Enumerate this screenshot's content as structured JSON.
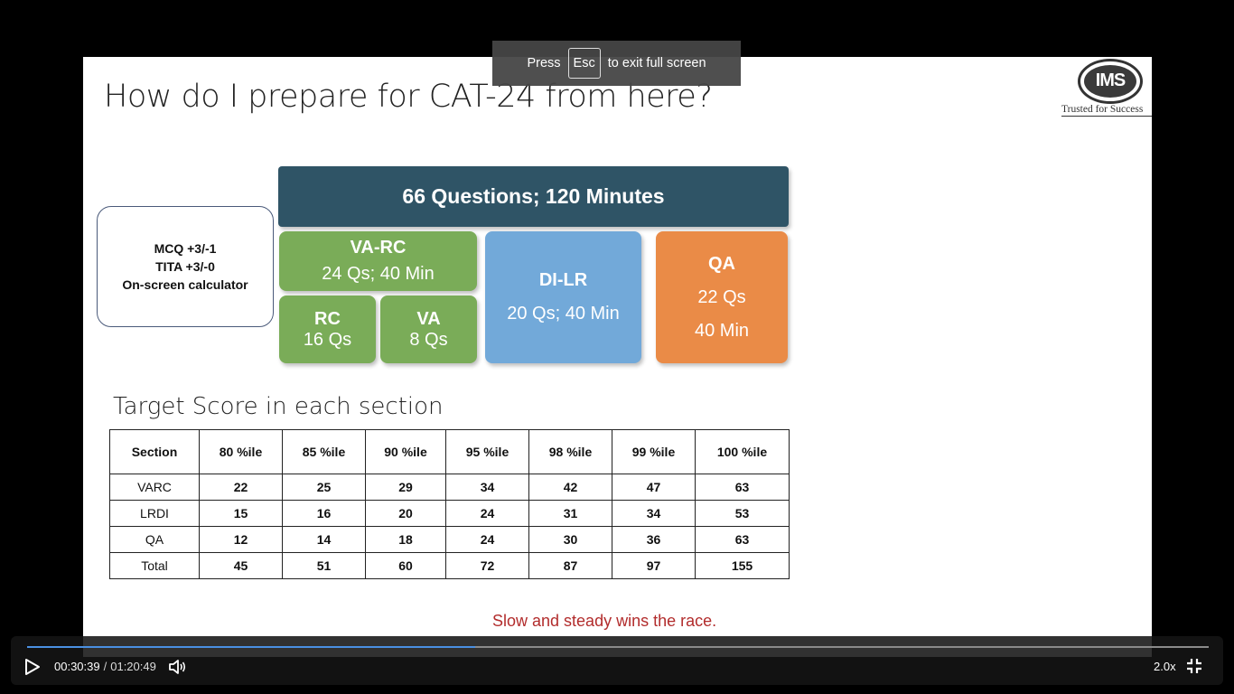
{
  "slide": {
    "title": "How do I prepare for CAT-24 from here?",
    "logo": {
      "text": "IMS",
      "tagline": "Trusted for Success"
    },
    "rules": [
      "MCQ +3/-1",
      "TITA +3/-0",
      "On-screen calculator"
    ],
    "header": "66 Questions; 120 Minutes",
    "varc": {
      "title": "VA-RC",
      "detail": "24 Qs; 40 Min"
    },
    "rc": {
      "title": "RC",
      "detail": "16 Qs"
    },
    "va": {
      "title": "VA",
      "detail": "8 Qs"
    },
    "dilr": {
      "title": "DI-LR",
      "detail": "20 Qs; 40 Min"
    },
    "qa": {
      "title": "QA",
      "qs": "22 Qs",
      "min": "40 Min"
    },
    "target_title": "Target Score in each section",
    "table": {
      "headers": [
        "Section",
        "80 %ile",
        "85 %ile",
        "90 %ile",
        "95 %ile",
        "98 %ile",
        "99 %ile",
        "100 %ile"
      ],
      "rows": [
        [
          "VARC",
          "22",
          "25",
          "29",
          "34",
          "42",
          "47",
          "63"
        ],
        [
          "LRDI",
          "15",
          "16",
          "20",
          "24",
          "31",
          "34",
          "53"
        ],
        [
          "QA",
          "12",
          "14",
          "18",
          "24",
          "30",
          "36",
          "63"
        ],
        [
          "Total",
          "45",
          "51",
          "60",
          "72",
          "87",
          "97",
          "155"
        ]
      ]
    },
    "tagline": "Slow and steady wins the race.",
    "colors": {
      "header": "#2f5466",
      "green": "#7aac58",
      "blue": "#72a9d9",
      "orange": "#ea8b47",
      "tagline": "#b22c2c"
    }
  },
  "fullscreen_toast": {
    "before": "Press",
    "key": "Esc",
    "after": "to exit full screen"
  },
  "player": {
    "current_time": "00:30:39",
    "separator": "/",
    "duration": "01:20:49",
    "progress_fraction": 0.379,
    "speed": "2.0x",
    "icons": {
      "play": "play-icon",
      "volume": "volume-icon",
      "exit_fullscreen": "exit-fullscreen-icon"
    },
    "accent": "#4a90e2"
  }
}
